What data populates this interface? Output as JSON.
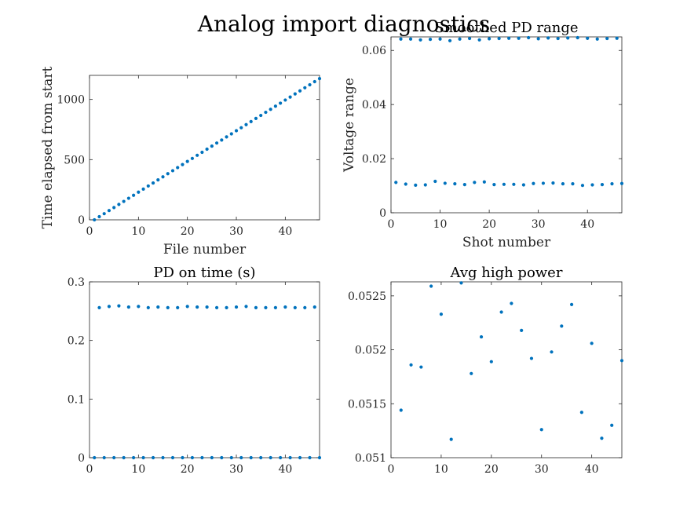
{
  "figure": {
    "suptitle": "Analog import diagnostics"
  },
  "colors": {
    "marker": "#0072BD",
    "axis": "#262626",
    "background": "#ffffff"
  },
  "chart_data": [
    {
      "type": "scatter",
      "title": "",
      "xlabel": "File number",
      "ylabel": "Time elapsed from start",
      "xlim": [
        0,
        47
      ],
      "ylim": [
        0,
        1200
      ],
      "xticks": [
        0,
        10,
        20,
        30,
        40
      ],
      "yticks": [
        0,
        500,
        1000
      ],
      "xtick_labels": [
        "0",
        "10",
        "20",
        "30",
        "40"
      ],
      "ytick_labels": [
        "0",
        "500",
        "1000"
      ],
      "grid": false,
      "series": [
        {
          "x": [
            1,
            2,
            3,
            4,
            5,
            6,
            7,
            8,
            9,
            10,
            11,
            12,
            13,
            14,
            15,
            16,
            17,
            18,
            19,
            20,
            21,
            22,
            23,
            24,
            25,
            26,
            27,
            28,
            29,
            30,
            31,
            32,
            33,
            34,
            35,
            36,
            37,
            38,
            39,
            40,
            41,
            42,
            43,
            44,
            45,
            46,
            47
          ],
          "y": [
            0,
            26,
            51,
            77,
            102,
            128,
            153,
            179,
            204,
            230,
            255,
            281,
            306,
            332,
            357,
            383,
            408,
            434,
            459,
            485,
            510,
            536,
            561,
            587,
            612,
            638,
            663,
            689,
            714,
            740,
            765,
            791,
            816,
            842,
            867,
            893,
            918,
            944,
            969,
            995,
            1020,
            1046,
            1071,
            1097,
            1122,
            1148,
            1173
          ]
        }
      ]
    },
    {
      "type": "scatter",
      "title": "Smoothed PD range",
      "xlabel": "Shot number",
      "ylabel": "Voltage range",
      "xlim": [
        0,
        47
      ],
      "ylim": [
        0,
        0.065
      ],
      "xticks": [
        0,
        10,
        20,
        30,
        40
      ],
      "yticks": [
        0,
        0.02,
        0.04,
        0.06
      ],
      "xtick_labels": [
        "0",
        "10",
        "20",
        "30",
        "40"
      ],
      "ytick_labels": [
        "0",
        "0.02",
        "0.04",
        "0.06"
      ],
      "grid": false,
      "series": [
        {
          "x": [
            1,
            3,
            5,
            7,
            9,
            11,
            13,
            15,
            17,
            19,
            21,
            23,
            25,
            27,
            29,
            31,
            33,
            35,
            37,
            39,
            41,
            43,
            45,
            47
          ],
          "y": [
            0.0112,
            0.0106,
            0.0102,
            0.0103,
            0.0116,
            0.0109,
            0.0107,
            0.0104,
            0.0112,
            0.0114,
            0.0104,
            0.0105,
            0.0105,
            0.0103,
            0.0108,
            0.0109,
            0.011,
            0.0107,
            0.0107,
            0.0101,
            0.0103,
            0.0104,
            0.0107,
            0.0108
          ]
        },
        {
          "x": [
            2,
            4,
            6,
            8,
            10,
            12,
            14,
            16,
            18,
            20,
            22,
            24,
            26,
            28,
            30,
            32,
            34,
            36,
            38,
            40,
            42,
            44,
            46
          ],
          "y": [
            0.0642,
            0.0642,
            0.0639,
            0.0641,
            0.0642,
            0.0636,
            0.0642,
            0.0644,
            0.0639,
            0.0643,
            0.0644,
            0.0645,
            0.0645,
            0.0647,
            0.0643,
            0.0646,
            0.0644,
            0.0646,
            0.0647,
            0.0645,
            0.0642,
            0.0644,
            0.0645
          ]
        }
      ]
    },
    {
      "type": "scatter",
      "title": "PD on time (s)",
      "xlabel": "",
      "ylabel": "",
      "xlim": [
        0,
        47
      ],
      "ylim": [
        0,
        0.3
      ],
      "xticks": [
        0,
        10,
        20,
        30,
        40
      ],
      "yticks": [
        0,
        0.1,
        0.2,
        0.3
      ],
      "xtick_labels": [
        "0",
        "10",
        "20",
        "30",
        "40"
      ],
      "ytick_labels": [
        "0",
        "0.1",
        "0.2",
        "0.3"
      ],
      "grid": false,
      "series": [
        {
          "x": [
            2,
            4,
            6,
            8,
            10,
            12,
            14,
            16,
            18,
            20,
            22,
            24,
            26,
            28,
            30,
            32,
            34,
            36,
            38,
            40,
            42,
            44,
            46
          ],
          "y": [
            0.256,
            0.258,
            0.259,
            0.257,
            0.258,
            0.256,
            0.257,
            0.256,
            0.256,
            0.258,
            0.257,
            0.257,
            0.256,
            0.256,
            0.257,
            0.258,
            0.256,
            0.256,
            0.256,
            0.257,
            0.256,
            0.256,
            0.257
          ]
        },
        {
          "x": [
            1,
            3,
            5,
            7,
            9,
            11,
            13,
            15,
            17,
            19,
            21,
            23,
            25,
            27,
            29,
            31,
            33,
            35,
            37,
            39,
            41,
            43,
            45,
            47
          ],
          "y": [
            0,
            0,
            0,
            0,
            0,
            0,
            0,
            0,
            0,
            0,
            0,
            0,
            0,
            0,
            0,
            0,
            0,
            0,
            0,
            0,
            0,
            0,
            0,
            0
          ]
        }
      ]
    },
    {
      "type": "scatter",
      "title": "Avg high power",
      "xlabel": "",
      "ylabel": "",
      "xlim": [
        0,
        46
      ],
      "ylim": [
        0.051,
        0.05263
      ],
      "xticks": [
        0,
        10,
        20,
        30,
        40
      ],
      "yticks": [
        0.051,
        0.0515,
        0.052,
        0.0525
      ],
      "xtick_labels": [
        "0",
        "10",
        "20",
        "30",
        "40"
      ],
      "ytick_labels": [
        "0.051",
        "0.0515",
        "0.052",
        "0.0525"
      ],
      "grid": false,
      "series": [
        {
          "x": [
            2,
            4,
            6,
            8,
            10,
            12,
            14,
            16,
            18,
            20,
            22,
            24,
            26,
            28,
            30,
            32,
            34,
            36,
            38,
            40,
            42,
            44,
            46
          ],
          "y": [
            0.05144,
            0.05186,
            0.05184,
            0.05259,
            0.05233,
            0.05117,
            0.05262,
            0.05178,
            0.05212,
            0.05189,
            0.05235,
            0.05243,
            0.05218,
            0.05192,
            0.05126,
            0.05198,
            0.05222,
            0.05242,
            0.05142,
            0.05206,
            0.05118,
            0.0513,
            0.0519
          ]
        }
      ]
    }
  ]
}
